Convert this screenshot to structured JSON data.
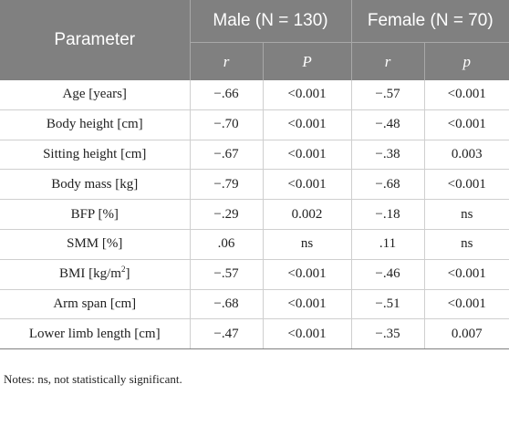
{
  "table": {
    "header": {
      "parameter": "Parameter",
      "male_group": "Male (N = 130)",
      "female_group": "Female (N = 70)",
      "male_r": "r",
      "male_p": "P",
      "female_r": "r",
      "female_p": "p"
    },
    "rows": [
      {
        "parameter": "Age [years]",
        "male_r": "−.66",
        "male_p": "<0.001",
        "female_r": "−.57",
        "female_p": "<0.001"
      },
      {
        "parameter": "Body height [cm]",
        "male_r": "−.70",
        "male_p": "<0.001",
        "female_r": "−.48",
        "female_p": "<0.001"
      },
      {
        "parameter": "Sitting height [cm]",
        "male_r": "−.67",
        "male_p": "<0.001",
        "female_r": "−.38",
        "female_p": "0.003"
      },
      {
        "parameter": "Body mass [kg]",
        "male_r": "−.79",
        "male_p": "<0.001",
        "female_r": "−.68",
        "female_p": "<0.001"
      },
      {
        "parameter": "BFP [%]",
        "male_r": "−.29",
        "male_p": "0.002",
        "female_r": "−.18",
        "female_p": "ns"
      },
      {
        "parameter": "SMM [%]",
        "male_r": ".06",
        "male_p": "ns",
        "female_r": ".11",
        "female_p": "ns"
      },
      {
        "parameter": "BMI [kg/m",
        "parameter_sup": "2",
        "parameter_suffix": "]",
        "male_r": "−.57",
        "male_p": "<0.001",
        "female_r": "−.46",
        "female_p": "<0.001"
      },
      {
        "parameter": "Arm span [cm]",
        "male_r": "−.68",
        "male_p": "<0.001",
        "female_r": "−.51",
        "female_p": "<0.001"
      },
      {
        "parameter": "Lower limb length [cm]",
        "male_r": "−.47",
        "male_p": "<0.001",
        "female_r": "−.35",
        "female_p": "0.007"
      }
    ]
  },
  "notes": "Notes: ns, not statistically significant."
}
